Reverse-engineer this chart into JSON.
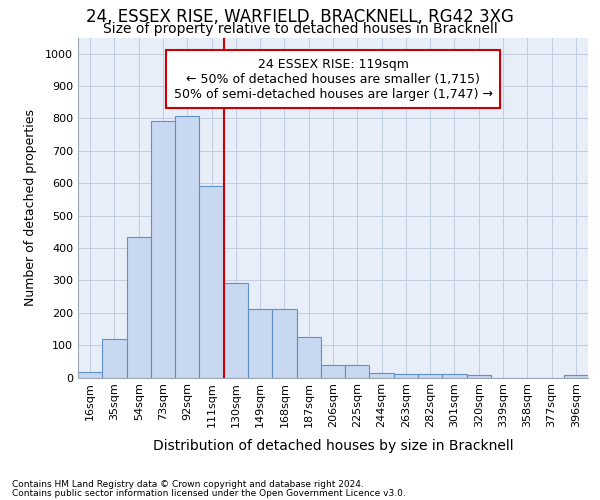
{
  "title": "24, ESSEX RISE, WARFIELD, BRACKNELL, RG42 3XG",
  "subtitle": "Size of property relative to detached houses in Bracknell",
  "xlabel": "Distribution of detached houses by size in Bracknell",
  "ylabel": "Number of detached properties",
  "categories": [
    "16sqm",
    "35sqm",
    "54sqm",
    "73sqm",
    "92sqm",
    "111sqm",
    "130sqm",
    "149sqm",
    "168sqm",
    "187sqm",
    "206sqm",
    "225sqm",
    "244sqm",
    "263sqm",
    "282sqm",
    "301sqm",
    "320sqm",
    "339sqm",
    "358sqm",
    "377sqm",
    "396sqm"
  ],
  "values": [
    18,
    120,
    435,
    793,
    808,
    590,
    293,
    213,
    213,
    125,
    40,
    40,
    15,
    10,
    10,
    10,
    8,
    0,
    0,
    0,
    8
  ],
  "bar_color": "#c8d8f0",
  "bar_edge_color": "#6090c8",
  "annotation_text": "24 ESSEX RISE: 119sqm\n← 50% of detached houses are smaller (1,715)\n50% of semi-detached houses are larger (1,747) →",
  "annotation_box_color": "#ffffff",
  "annotation_box_edge_color": "#cc0000",
  "vline_color": "#cc0000",
  "vline_x": 5.5,
  "ylim": [
    0,
    1050
  ],
  "yticks": [
    0,
    100,
    200,
    300,
    400,
    500,
    600,
    700,
    800,
    900,
    1000
  ],
  "footnote1": "Contains HM Land Registry data © Crown copyright and database right 2024.",
  "footnote2": "Contains public sector information licensed under the Open Government Licence v3.0.",
  "bg_color": "#ffffff",
  "plot_bg_color": "#e8eef8",
  "grid_color": "#c0cce0",
  "title_fontsize": 12,
  "subtitle_fontsize": 10,
  "xlabel_fontsize": 10,
  "ylabel_fontsize": 9,
  "tick_fontsize": 8,
  "annotation_fontsize": 9,
  "footnote_fontsize": 6.5
}
